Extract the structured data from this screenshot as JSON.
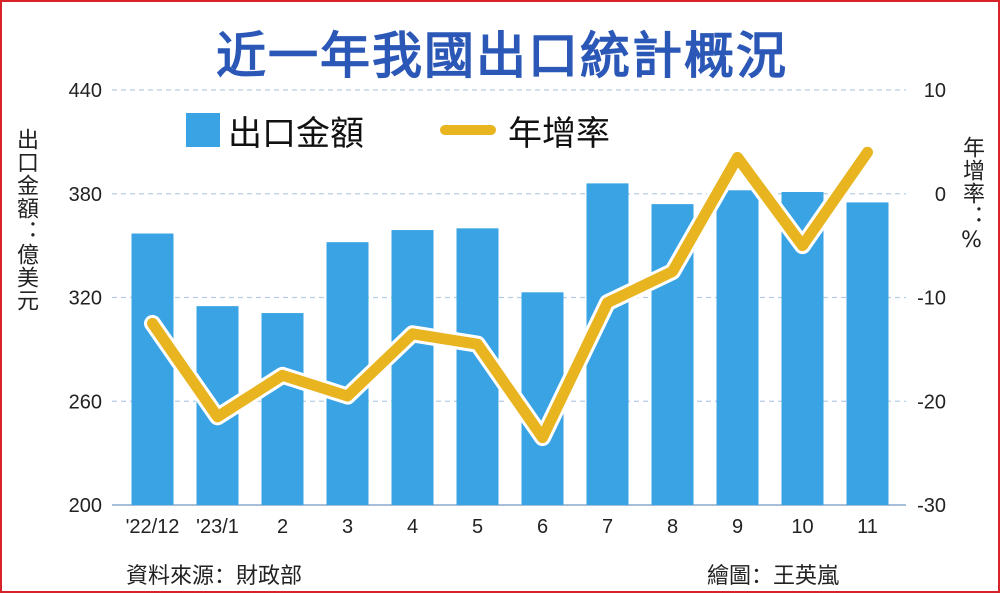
{
  "title": "近一年我國出口統計概況",
  "colors": {
    "bar": "#3aa3e3",
    "line": "#e8b41f",
    "title": "#2b57b6",
    "border": "#d9232a",
    "grid": "#b6cde6"
  },
  "chart_data": {
    "type": "bar",
    "title": "近一年我國出口統計概況",
    "categories": [
      "'22/12",
      "'23/1",
      "2",
      "3",
      "4",
      "5",
      "6",
      "7",
      "8",
      "9",
      "10",
      "11"
    ],
    "series": [
      {
        "name": "出口金額",
        "type": "bar",
        "axis": "left",
        "values": [
          357,
          315,
          311,
          352,
          359,
          360,
          323,
          386,
          374,
          382,
          381,
          375
        ]
      },
      {
        "name": "年增率",
        "type": "line",
        "axis": "right",
        "values": [
          -12.5,
          -21.5,
          -17.5,
          -19.5,
          -13.5,
          -14.5,
          -23.5,
          -10.5,
          -7.5,
          3.5,
          -5,
          4
        ]
      }
    ],
    "ylabel": "出口金額：億美元",
    "y2label": "年增率：%",
    "ylim": [
      200,
      440
    ],
    "y2lim": [
      -30,
      10
    ],
    "yticks": [
      "200",
      "260",
      "320",
      "380",
      "440"
    ],
    "y2ticks": [
      "-30",
      "-20",
      "-10",
      "0",
      "10"
    ],
    "grid": true,
    "legend": "top"
  },
  "footer": {
    "source": "資料來源：財政部",
    "credit": "繪圖：王英嵐"
  }
}
